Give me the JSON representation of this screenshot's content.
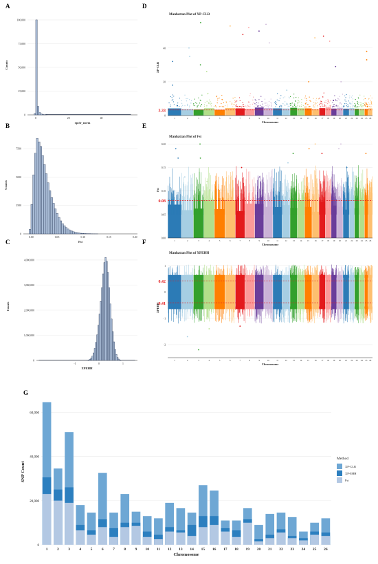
{
  "panel_labels": {
    "A": "A",
    "B": "B",
    "C": "C",
    "D": "D",
    "E": "E",
    "F": "F",
    "G": "G"
  },
  "colors": {
    "hist_fill": "#a9bcd6",
    "hist_stroke": "#1b2a49",
    "threshold_line": "#e31a1c",
    "bar_xpclr": "#6ea7d4",
    "bar_xpehh": "#2c7fbf",
    "bar_fst": "#b3c8e3",
    "chrom_palette": [
      "#2c7bb6",
      "#a6cee3",
      "#33a02c",
      "#b2df8a",
      "#ff7f00",
      "#fdbf6f",
      "#e31a1c",
      "#fb9a99",
      "#6a3d9a",
      "#cab2d6"
    ]
  },
  "chart_data": [
    {
      "id": "A",
      "type": "bar",
      "title": "",
      "xlabel": "xpclr_norm",
      "ylabel": "Counts",
      "xlim": [
        -5,
        62
      ],
      "ylim": [
        0,
        105000
      ],
      "xticks": [
        0,
        20,
        40
      ],
      "yticks": [
        0,
        25000,
        50000,
        75000,
        100000
      ],
      "ytick_labels": [
        "0",
        "25,000",
        "50,000",
        "75,000",
        "100,000"
      ],
      "bin_width": 1,
      "bins": [
        -1,
        0,
        1,
        2,
        3,
        4,
        5,
        6
      ],
      "values": [
        1500,
        100000,
        9000,
        2500,
        900,
        400,
        200,
        100
      ],
      "grid": true
    },
    {
      "id": "B",
      "type": "bar",
      "title": "",
      "xlabel": "Fst",
      "ylabel": "Counts",
      "xlim": [
        -0.015,
        0.205
      ],
      "ylim": [
        0,
        8600
      ],
      "xticks": [
        0.0,
        0.05,
        0.1,
        0.15,
        0.2
      ],
      "xtick_labels": [
        "0.00",
        "0.05",
        "0.10",
        "0.15",
        "0.20"
      ],
      "yticks": [
        0,
        2500,
        5000,
        7500
      ],
      "ytick_labels": [
        "0",
        "2500",
        "5000",
        "7500"
      ],
      "bin_width": 0.0035,
      "values": [
        400,
        2600,
        5200,
        7100,
        8400,
        8100,
        7700,
        6900,
        6100,
        5300,
        4500,
        3800,
        3200,
        2700,
        2200,
        1800,
        1450,
        1150,
        900,
        720,
        560,
        430,
        330,
        250,
        190,
        140,
        105,
        80,
        60,
        45,
        35,
        25,
        18,
        12,
        8,
        5,
        3,
        2
      ],
      "bin_start": -0.004,
      "grid": true
    },
    {
      "id": "C",
      "type": "bar",
      "title": "",
      "xlabel": "XPEHH",
      "ylabel": "Counts",
      "xlim": [
        -2.6,
        1.6
      ],
      "ylim": [
        0,
        4300000
      ],
      "xticks": [
        -1,
        0,
        1
      ],
      "yticks": [
        0,
        1000000,
        2000000,
        3000000,
        4000000
      ],
      "ytick_labels": [
        "0",
        "1,000,000",
        "2,000,000",
        "3,000,000",
        "4,000,000"
      ],
      "bin_width": 0.05,
      "bin_start": -0.5,
      "values": [
        8000,
        20000,
        45000,
        90000,
        170000,
        300000,
        480000,
        720000,
        1020000,
        1400000,
        1850000,
        2350000,
        2900000,
        3450000,
        3900000,
        4100000,
        3950000,
        3500000,
        2900000,
        2250000,
        1650000,
        1150000,
        740000,
        440000,
        240000,
        120000,
        55000,
        22000,
        8000
      ],
      "grid": true
    },
    {
      "id": "D",
      "type": "scatter",
      "title": "Manhattan Plot of XP-CLR",
      "xlabel": "Chromosome",
      "ylabel": "XP-CLR",
      "ylim": [
        0,
        57
      ],
      "yticks": [
        0,
        20,
        40
      ],
      "threshold": 3.33,
      "threshold_label": "3.33",
      "chromosomes": [
        "1",
        "2",
        "3",
        "4",
        "5",
        "6",
        "7",
        "8",
        "9",
        "10",
        "11",
        "12",
        "13",
        "14",
        "15",
        "16",
        "17",
        "18",
        "19",
        "20",
        "21",
        "22",
        "23",
        "24",
        "25",
        "26"
      ],
      "chrom_sizes": [
        158,
        137,
        121,
        120,
        121,
        119,
        110,
        113,
        105,
        103,
        107,
        91,
        83,
        84,
        85,
        81,
        73,
        66,
        64,
        72,
        71,
        61,
        52,
        62,
        42,
        51
      ],
      "peaks": [
        [
          1,
          32
        ],
        [
          1,
          18
        ],
        [
          2,
          40
        ],
        [
          2,
          35
        ],
        [
          3,
          55
        ],
        [
          3,
          30
        ],
        [
          4,
          26
        ],
        [
          6,
          53
        ],
        [
          7,
          48
        ],
        [
          8,
          52
        ],
        [
          9,
          50
        ],
        [
          10,
          54
        ],
        [
          10,
          43
        ],
        [
          12,
          15
        ],
        [
          15,
          20
        ],
        [
          16,
          46
        ],
        [
          17,
          47
        ],
        [
          18,
          44
        ],
        [
          19,
          29
        ],
        [
          20,
          20
        ],
        [
          25,
          38
        ],
        [
          25,
          33
        ]
      ],
      "grid": true
    },
    {
      "id": "E",
      "type": "scatter",
      "title": "Manhattan Plot of Fst",
      "xlabel": "Chromosome",
      "ylabel": "Fst",
      "ylim": [
        0,
        0.205
      ],
      "yticks": [
        0.0,
        0.05,
        0.1,
        0.15,
        0.2
      ],
      "ytick_labels": [
        "0.00",
        "0.05",
        "0.10",
        "0.15",
        "0.20"
      ],
      "threshold": 0.08,
      "threshold_label": "0.08",
      "chromosomes": [
        "1",
        "2",
        "3",
        "4",
        "5",
        "6",
        "7",
        "8",
        "9",
        "10",
        "11",
        "12",
        "13",
        "14",
        "15",
        "16",
        "17",
        "18",
        "19",
        "20",
        "21",
        "22",
        "23",
        "24",
        "25",
        "26"
      ],
      "chrom_sizes": [
        158,
        137,
        121,
        120,
        121,
        119,
        110,
        113,
        105,
        103,
        107,
        91,
        83,
        84,
        85,
        81,
        73,
        66,
        64,
        72,
        71,
        61,
        52,
        62,
        42,
        51
      ],
      "peaks": [
        [
          1,
          0.19
        ],
        [
          1,
          0.17
        ],
        [
          2,
          0.13
        ],
        [
          3,
          0.2
        ],
        [
          3,
          0.17
        ],
        [
          4,
          0.12
        ],
        [
          7,
          0.15
        ],
        [
          9,
          0.13
        ],
        [
          12,
          0.16
        ],
        [
          13,
          0.18
        ],
        [
          15,
          0.19
        ],
        [
          16,
          0.2
        ],
        [
          17,
          0.18
        ],
        [
          20,
          0.2
        ],
        [
          20,
          0.19
        ],
        [
          21,
          0.15
        ],
        [
          25,
          0.18
        ]
      ],
      "grid": true
    },
    {
      "id": "F",
      "type": "scatter",
      "title": "Manhattan Plot of XPEHH",
      "xlabel": "Chromosome",
      "ylabel": "XPEHH",
      "ylim": [
        -2.5,
        1.3
      ],
      "yticks": [
        -2,
        -1,
        0,
        1
      ],
      "thresholds": [
        0.42,
        -0.41
      ],
      "threshold_labels": [
        "0.42",
        "-0.41"
      ],
      "chromosomes": [
        "1",
        "2",
        "3",
        "4",
        "5",
        "6",
        "7",
        "8",
        "9",
        "10",
        "11",
        "12",
        "13",
        "14",
        "15",
        "16",
        "17",
        "18",
        "19",
        "20",
        "21",
        "22",
        "23",
        "24",
        "25",
        "26"
      ],
      "chrom_sizes": [
        158,
        137,
        121,
        120,
        121,
        119,
        110,
        113,
        105,
        103,
        107,
        91,
        83,
        84,
        85,
        81,
        73,
        66,
        64,
        72,
        71,
        61,
        52,
        62,
        42,
        51
      ],
      "band": [
        -0.55,
        0.55
      ],
      "range": [
        -1.2,
        1.05
      ],
      "outliers": [
        [
          2,
          -1.7
        ],
        [
          3,
          -2.2
        ],
        [
          4,
          -1.4
        ],
        [
          7,
          -1.3
        ]
      ],
      "grid": true
    },
    {
      "id": "G",
      "type": "bar",
      "title": "",
      "xlabel": "Chromosome",
      "ylabel": "SNP Count",
      "ylim": [
        0,
        66000
      ],
      "yticks": [
        0,
        20000,
        40000,
        60000
      ],
      "ytick_labels": [
        "0",
        "20,000",
        "40,000",
        "60,000"
      ],
      "legend_title": "Method",
      "legend_position": "right",
      "categories": [
        "1",
        "2",
        "3",
        "4",
        "5",
        "6",
        "7",
        "8",
        "9",
        "10",
        "11",
        "12",
        "13",
        "14",
        "15",
        "16",
        "17",
        "18",
        "19",
        "20",
        "21",
        "22",
        "23",
        "24",
        "25",
        "26"
      ],
      "series": [
        {
          "name": "XP-CLR",
          "values": [
            64500,
            34500,
            51000,
            18000,
            14500,
            32500,
            14500,
            23000,
            15000,
            13000,
            12000,
            19000,
            16500,
            14500,
            27000,
            24500,
            11000,
            11000,
            16500,
            9000,
            14000,
            14500,
            12500,
            6000,
            10000,
            12000
          ]
        },
        {
          "name": "XP-EHH",
          "values": [
            30500,
            25000,
            26000,
            9000,
            6500,
            11500,
            7500,
            10000,
            10000,
            6000,
            4500,
            8000,
            6500,
            9000,
            13000,
            13000,
            7500,
            6500,
            11500,
            2500,
            4500,
            7000,
            4000,
            3000,
            6000,
            5500
          ]
        },
        {
          "name": "Fst",
          "values": [
            23000,
            20000,
            19000,
            6500,
            4500,
            8000,
            3500,
            8000,
            8500,
            3500,
            2500,
            6000,
            5500,
            4000,
            8000,
            9000,
            6000,
            3500,
            10000,
            1500,
            3000,
            5500,
            3000,
            2000,
            4500,
            4000
          ]
        }
      ],
      "grid": true
    }
  ]
}
